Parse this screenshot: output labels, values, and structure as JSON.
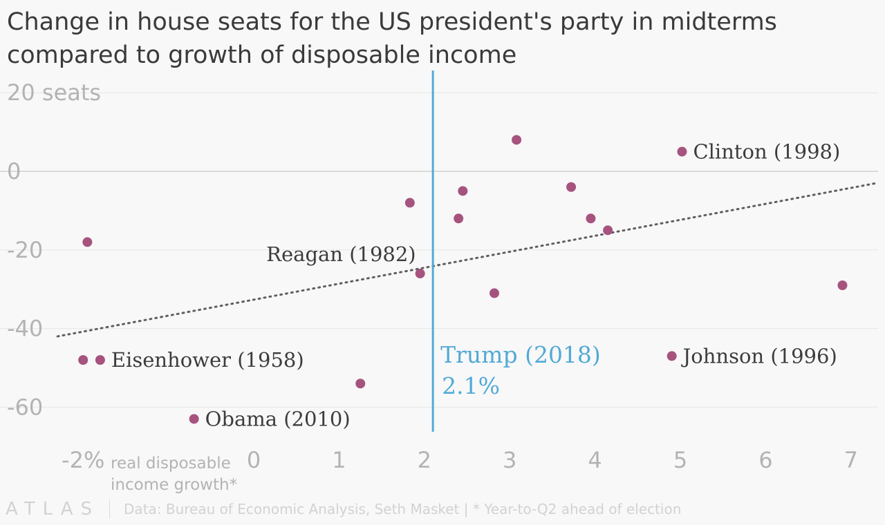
{
  "chart_data": {
    "type": "scatter",
    "title": "Change in house seats for the US president's party in midterms compared to growth of disposable income",
    "xlabel": "real disposable income growth*",
    "ylabel": "",
    "xlim": [
      -2.4,
      7.3
    ],
    "ylim": [
      -66,
      23
    ],
    "x_ticks": [
      {
        "value": -2,
        "label": "-2%"
      },
      {
        "value": 0,
        "label": "0"
      },
      {
        "value": 1,
        "label": "1"
      },
      {
        "value": 2,
        "label": "2"
      },
      {
        "value": 3,
        "label": "3"
      },
      {
        "value": 4,
        "label": "4"
      },
      {
        "value": 5,
        "label": "5"
      },
      {
        "value": 6,
        "label": "6"
      },
      {
        "value": 7,
        "label": "7"
      }
    ],
    "y_ticks": [
      {
        "value": 20,
        "label": "20 seats"
      },
      {
        "value": 0,
        "label": "0"
      },
      {
        "value": -20,
        "label": "-20"
      },
      {
        "value": -40,
        "label": "-40"
      },
      {
        "value": -60,
        "label": "-60"
      }
    ],
    "grid": true,
    "points": [
      {
        "x": -2.0,
        "y": -48
      },
      {
        "x": -1.8,
        "y": -48,
        "label": "Eisenhower (1958)"
      },
      {
        "x": -1.95,
        "y": -18
      },
      {
        "x": -0.7,
        "y": -63,
        "label": "Obama (2010)"
      },
      {
        "x": 1.25,
        "y": -54
      },
      {
        "x": 1.83,
        "y": -8
      },
      {
        "x": 1.95,
        "y": -26,
        "label": "Reagan (1982)"
      },
      {
        "x": 2.4,
        "y": -12
      },
      {
        "x": 2.45,
        "y": -5
      },
      {
        "x": 2.82,
        "y": -31
      },
      {
        "x": 3.08,
        "y": 8
      },
      {
        "x": 3.72,
        "y": -4
      },
      {
        "x": 3.95,
        "y": -12
      },
      {
        "x": 4.15,
        "y": -15
      },
      {
        "x": 4.9,
        "y": -47,
        "label": "Johnson (1996)"
      },
      {
        "x": 5.02,
        "y": 5,
        "label": "Clinton (1998)"
      },
      {
        "x": 6.9,
        "y": -29
      }
    ],
    "trendline": {
      "x": [
        -2.3,
        7.3
      ],
      "y": [
        -42,
        -3
      ]
    },
    "reference_line": {
      "x": 2.1,
      "label": "Trump (2018)",
      "value_label": "2.1%"
    },
    "point_color": "#a6537e",
    "reference_color": "#51aad6",
    "axis_text_color": "#b3b3b3",
    "label_text_color": "#3c3c3c"
  },
  "footer": {
    "logo": "ATLAS",
    "source": "Data: Bureau of Economic Analysis, Seth Masket  |  * Year-to-Q2 ahead of election"
  }
}
